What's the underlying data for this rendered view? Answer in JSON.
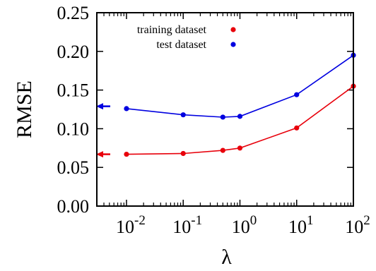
{
  "chart_data": {
    "type": "line",
    "xlabel": "λ",
    "ylabel": "RMSE",
    "x_scale": "log",
    "xlim": [
      0.003,
      100
    ],
    "ylim": [
      0,
      0.25
    ],
    "grid": false,
    "legend_position": "top-right",
    "x_ticks": [
      {
        "value": 0.01,
        "base": "10",
        "exp": "-2"
      },
      {
        "value": 0.1,
        "base": "10",
        "exp": "-1"
      },
      {
        "value": 1,
        "base": "10",
        "exp": "0"
      },
      {
        "value": 10,
        "base": "10",
        "exp": "1"
      },
      {
        "value": 100,
        "base": "10",
        "exp": "2"
      }
    ],
    "y_ticks": [
      "0.00",
      "0.05",
      "0.10",
      "0.15",
      "0.20",
      "0.25"
    ],
    "series": [
      {
        "name": "training dataset",
        "color": "#e8000b",
        "x": [
          0.01,
          0.1,
          0.5,
          1,
          10,
          100
        ],
        "y": [
          0.067,
          0.068,
          0.072,
          0.075,
          0.101,
          0.155
        ],
        "arrow_value": 0.067
      },
      {
        "name": "test dataset",
        "color": "#0000e0",
        "x": [
          0.01,
          0.1,
          0.5,
          1,
          10,
          100
        ],
        "y": [
          0.126,
          0.118,
          0.115,
          0.116,
          0.144,
          0.195
        ],
        "arrow_value": 0.129
      }
    ]
  }
}
